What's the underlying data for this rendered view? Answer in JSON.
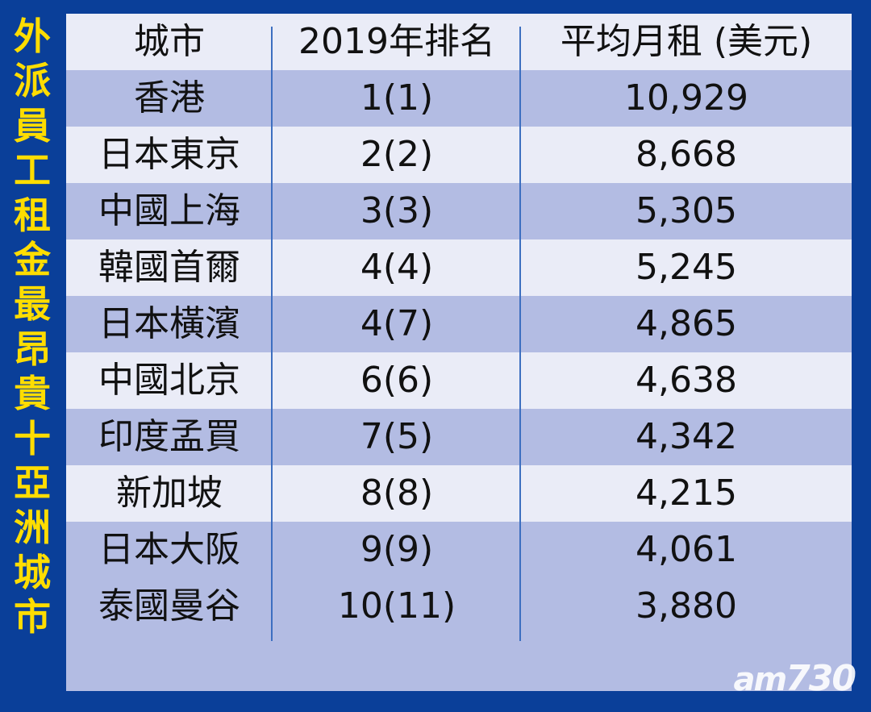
{
  "side_title": [
    "外",
    "派",
    "員",
    "工",
    "租",
    "金",
    "最",
    "昂",
    "貴",
    "十",
    "亞",
    "洲",
    "城",
    "市"
  ],
  "watermark": "am730",
  "chart_data": {
    "type": "table",
    "columns": [
      "城市",
      "2019年排名",
      "平均月租 (美元)"
    ],
    "rows": [
      {
        "city": "香港",
        "rank": "1(1)",
        "rent": "10,929"
      },
      {
        "city": "日本東京",
        "rank": "2(2)",
        "rent": "8,668"
      },
      {
        "city": "中國上海",
        "rank": "3(3)",
        "rent": "5,305"
      },
      {
        "city": "韓國首爾",
        "rank": "4(4)",
        "rent": "5,245"
      },
      {
        "city": "日本橫濱",
        "rank": "4(7)",
        "rent": "4,865"
      },
      {
        "city": "中國北京",
        "rank": "6(6)",
        "rent": "4,638"
      },
      {
        "city": "印度孟買",
        "rank": "7(5)",
        "rent": "4,342"
      },
      {
        "city": "新加坡",
        "rank": "8(8)",
        "rent": "4,215"
      },
      {
        "city": "日本大阪",
        "rank": "9(9)",
        "rent": "4,061"
      },
      {
        "city": "泰國曼谷",
        "rank": "10(11)",
        "rent": "3,880"
      }
    ]
  }
}
